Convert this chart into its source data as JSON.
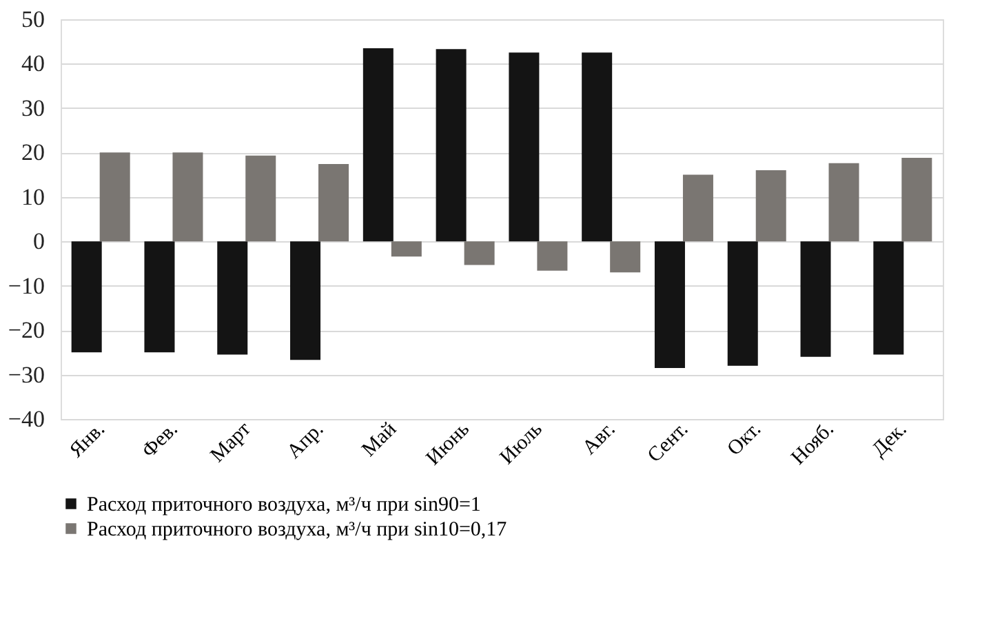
{
  "chart_data": {
    "type": "bar",
    "categories": [
      "Янв.",
      "Фев.",
      "Март",
      "Апр.",
      "Май",
      "Июнь",
      "Июль",
      "Авг.",
      "Сент.",
      "Окт.",
      "Нояб.",
      "Дек."
    ],
    "series": [
      {
        "name": "Расход приточного воздуха, м³/ч при sin90=1",
        "color": "#141414",
        "values": [
          -25,
          -25,
          -25.5,
          -26.7,
          43.5,
          43.3,
          42.5,
          42.5,
          -28.5,
          -28,
          -26,
          -25.5
        ]
      },
      {
        "name": "Расход приточного воздуха, м³/ч при sin10=0,17",
        "color": "#7a7672",
        "values": [
          20,
          20,
          19.3,
          17.4,
          -3.4,
          -5.3,
          -6.6,
          -7,
          15,
          16,
          17.6,
          18.8
        ]
      }
    ],
    "ylim": [
      -40,
      50
    ],
    "yticks": [
      -40,
      -30,
      -20,
      -10,
      0,
      10,
      20,
      30,
      40,
      50
    ],
    "grid": "y",
    "legend": "bottom"
  }
}
